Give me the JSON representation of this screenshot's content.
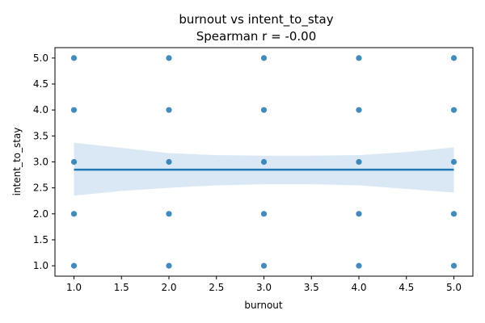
{
  "chart_data": {
    "type": "scatter",
    "title": "burnout vs intent_to_stay",
    "subtitle": "Spearman r = -0.00",
    "xlabel": "burnout",
    "ylabel": "intent_to_stay",
    "xlim": [
      0.8,
      5.2
    ],
    "ylim": [
      0.8,
      5.2
    ],
    "xticks": [
      "1.0",
      "1.5",
      "2.0",
      "2.5",
      "3.0",
      "3.5",
      "4.0",
      "4.5",
      "5.0"
    ],
    "yticks": [
      "1.0",
      "1.5",
      "2.0",
      "2.5",
      "3.0",
      "3.5",
      "4.0",
      "4.5",
      "5.0"
    ],
    "grid": false,
    "colors": {
      "points": "#1f77b4",
      "line": "#1f77b4",
      "band": "#c6dbef"
    },
    "points": [
      {
        "x": 1,
        "y": 1
      },
      {
        "x": 1,
        "y": 2
      },
      {
        "x": 1,
        "y": 3
      },
      {
        "x": 1,
        "y": 4
      },
      {
        "x": 1,
        "y": 5
      },
      {
        "x": 2,
        "y": 1
      },
      {
        "x": 2,
        "y": 2
      },
      {
        "x": 2,
        "y": 3
      },
      {
        "x": 2,
        "y": 4
      },
      {
        "x": 2,
        "y": 5
      },
      {
        "x": 3,
        "y": 1
      },
      {
        "x": 3,
        "y": 2
      },
      {
        "x": 3,
        "y": 3
      },
      {
        "x": 3,
        "y": 4
      },
      {
        "x": 3,
        "y": 5
      },
      {
        "x": 4,
        "y": 1
      },
      {
        "x": 4,
        "y": 2
      },
      {
        "x": 4,
        "y": 3
      },
      {
        "x": 4,
        "y": 4
      },
      {
        "x": 4,
        "y": 5
      },
      {
        "x": 5,
        "y": 1
      },
      {
        "x": 5,
        "y": 2
      },
      {
        "x": 5,
        "y": 3
      },
      {
        "x": 5,
        "y": 4
      },
      {
        "x": 5,
        "y": 5
      }
    ],
    "regression": {
      "x": [
        1.0,
        5.0
      ],
      "y": [
        2.85,
        2.85
      ]
    },
    "confidence_band": {
      "x": [
        1.0,
        1.5,
        2.0,
        2.5,
        3.0,
        3.5,
        4.0,
        4.5,
        5.0
      ],
      "upper": [
        3.37,
        3.27,
        3.17,
        3.13,
        3.12,
        3.12,
        3.13,
        3.19,
        3.28
      ],
      "lower": [
        2.35,
        2.44,
        2.5,
        2.55,
        2.57,
        2.57,
        2.55,
        2.48,
        2.41
      ]
    }
  }
}
